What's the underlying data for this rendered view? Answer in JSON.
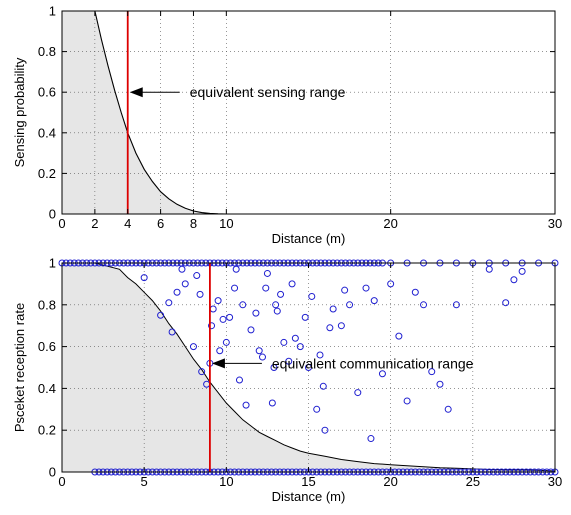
{
  "chart_data": [
    {
      "type": "area",
      "xlabel": "Distance (m)",
      "ylabel": "Sensing probability",
      "xlim": [
        0,
        30
      ],
      "ylim": [
        0,
        1
      ],
      "xticks": [
        0,
        2,
        4,
        6,
        8,
        10,
        20,
        30
      ],
      "yticks": [
        0,
        0.2,
        0.4,
        0.6,
        0.8,
        1
      ],
      "grid": true,
      "curve": {
        "x": [
          0,
          1,
          2,
          2.4,
          2.8,
          3.2,
          3.6,
          4,
          4.5,
          5,
          5.5,
          6,
          6.5,
          7,
          7.5,
          8,
          8.5,
          9,
          9.5,
          10
        ],
        "y": [
          1,
          1,
          1,
          0.86,
          0.73,
          0.61,
          0.5,
          0.4,
          0.3,
          0.22,
          0.16,
          0.11,
          0.075,
          0.048,
          0.028,
          0.015,
          0.007,
          0.003,
          0.001,
          0
        ]
      },
      "marker_line": {
        "x": 4,
        "color": "#dd0000"
      },
      "annotation": {
        "text": "equivalent sensing range",
        "x": 4,
        "y": 0.6
      }
    },
    {
      "type": "scatter",
      "xlabel": "Distance (m)",
      "ylabel": "Psceket reception rate",
      "xlim": [
        0,
        30
      ],
      "ylim": [
        0,
        1
      ],
      "xticks": [
        0,
        5,
        10,
        15,
        20,
        25,
        30
      ],
      "yticks": [
        0,
        0.2,
        0.4,
        0.6,
        0.8,
        1
      ],
      "grid": true,
      "curve": {
        "x": [
          0,
          1,
          2,
          2.5,
          3,
          3.5,
          4,
          4.5,
          5,
          5.5,
          6,
          6.5,
          7,
          7.5,
          8,
          8.5,
          9,
          9.5,
          10,
          10.5,
          11,
          11.5,
          12,
          12.5,
          13,
          13.5,
          14,
          14.5,
          15,
          16,
          17,
          18,
          19,
          20,
          21,
          22,
          23,
          24,
          25,
          26,
          27,
          28,
          29,
          30
        ],
        "y": [
          1,
          1,
          1,
          0.99,
          0.98,
          0.97,
          0.93,
          0.9,
          0.86,
          0.82,
          0.77,
          0.71,
          0.66,
          0.6,
          0.54,
          0.49,
          0.43,
          0.38,
          0.33,
          0.29,
          0.25,
          0.22,
          0.19,
          0.17,
          0.15,
          0.13,
          0.115,
          0.1,
          0.09,
          0.075,
          0.06,
          0.05,
          0.04,
          0.035,
          0.03,
          0.025,
          0.02,
          0.018,
          0.015,
          0.012,
          0.01,
          0.01,
          0.008,
          0.005
        ]
      },
      "points": {
        "color": "#1f1fd0",
        "x": [
          5,
          6,
          6.5,
          7,
          7.5,
          8,
          8.5,
          8.8,
          9,
          9.2,
          9.5,
          9.8,
          10,
          10.5,
          11,
          11.5,
          12,
          12.5,
          12.8,
          13,
          13.3,
          13.5,
          14,
          14.5,
          15,
          15.5,
          16,
          16.5,
          17,
          17.5,
          18,
          18.5,
          19,
          20,
          21,
          22,
          22.5,
          23,
          23.5,
          24,
          26,
          27.5,
          28,
          6.7,
          8.2,
          9.6,
          10.8,
          11.8,
          12.2,
          13.8,
          14.8,
          15.2,
          16.3,
          18.8,
          19.5,
          21.5,
          27,
          10.2,
          11.2,
          12.4,
          14.2,
          15.7,
          17.2,
          8.4,
          9.1,
          10.6,
          13.1,
          15.9,
          7.3,
          12.9,
          20.5
        ],
        "y": [
          0.93,
          0.75,
          0.81,
          0.86,
          0.9,
          0.6,
          0.48,
          0.42,
          0.52,
          0.78,
          0.82,
          0.73,
          0.62,
          0.88,
          0.8,
          0.68,
          0.58,
          0.95,
          0.33,
          0.8,
          0.85,
          0.62,
          0.9,
          0.6,
          0.5,
          0.3,
          0.2,
          0.78,
          0.7,
          0.8,
          0.38,
          0.88,
          0.82,
          0.9,
          0.34,
          0.8,
          0.48,
          0.42,
          0.3,
          0.8,
          0.97,
          0.92,
          0.96,
          0.67,
          0.94,
          0.58,
          0.44,
          0.76,
          0.55,
          0.53,
          0.74,
          0.84,
          0.69,
          0.16,
          0.47,
          0.86,
          0.81,
          0.74,
          0.32,
          0.88,
          0.64,
          0.56,
          0.87,
          0.85,
          0.7,
          0.97,
          0.77,
          0.41,
          0.97,
          0.5,
          0.65
        ],
        "top_band_xmax": 19.5,
        "bottom_band_xmax": 30
      },
      "marker_line": {
        "x": 9,
        "color": "#dd0000"
      },
      "annotation": {
        "text": "equivalent communication range",
        "x": 9,
        "y": 0.52
      }
    }
  ]
}
